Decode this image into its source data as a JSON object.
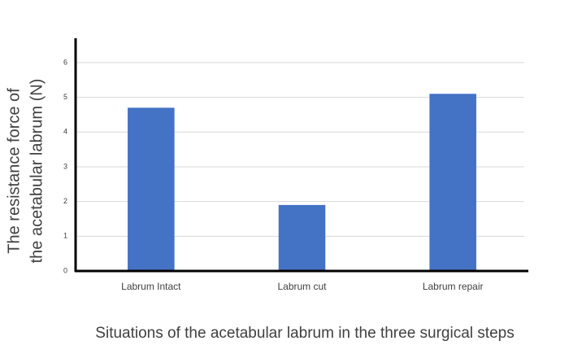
{
  "chart_data": {
    "type": "bar",
    "xlabel": "Situations of  the acetabular labrum in the three surgical steps",
    "ylabel": [
      "The resistance force of",
      "the acetabular labrum (N)"
    ],
    "categories": [
      "Labrum Intact",
      "Labrum cut",
      "Labrum repair"
    ],
    "values": [
      4.7,
      1.9,
      5.1
    ],
    "color": "#4472c4",
    "ylim": [
      0,
      6.7
    ],
    "yticks": [
      0,
      1,
      2,
      3,
      4,
      5,
      6
    ],
    "grid": true
  }
}
